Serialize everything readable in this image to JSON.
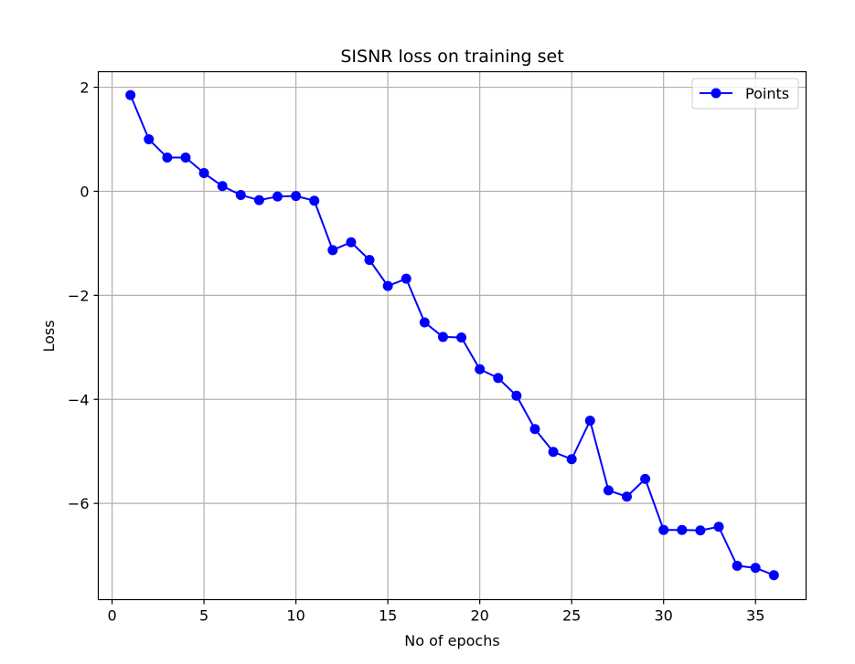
{
  "chart_data": {
    "type": "line",
    "title": "SISNR loss on training set",
    "xlabel": "No of epochs",
    "ylabel": "Loss",
    "xlim": [
      -0.75,
      37.75
    ],
    "ylim": [
      -7.85,
      2.3
    ],
    "xticks": [
      0,
      5,
      10,
      15,
      20,
      25,
      30,
      35
    ],
    "xtick_labels": [
      "0",
      "5",
      "10",
      "15",
      "20",
      "25",
      "30",
      "35"
    ],
    "yticks": [
      2,
      0,
      -2,
      -4,
      -6
    ],
    "ytick_labels": [
      "2",
      "0",
      "−2",
      "−4",
      "−6"
    ],
    "grid": true,
    "legend_position": "top-right",
    "series": [
      {
        "name": "Points",
        "color": "#0000ff",
        "marker": "circle",
        "x": [
          1,
          2,
          3,
          4,
          5,
          6,
          7,
          8,
          9,
          10,
          11,
          12,
          13,
          14,
          15,
          16,
          17,
          18,
          19,
          20,
          21,
          22,
          23,
          24,
          25,
          26,
          27,
          28,
          29,
          30,
          31,
          32,
          33,
          34,
          35,
          36
        ],
        "y": [
          1.85,
          1.0,
          0.65,
          0.65,
          0.35,
          0.1,
          -0.07,
          -0.17,
          -0.1,
          -0.09,
          -0.18,
          -1.13,
          -0.98,
          -1.32,
          -1.82,
          -1.68,
          -2.52,
          -2.8,
          -2.81,
          -3.42,
          -3.59,
          -3.93,
          -4.57,
          -5.01,
          -5.15,
          -4.41,
          -5.75,
          -5.87,
          -5.53,
          -6.51,
          -6.51,
          -6.52,
          -6.45,
          -7.2,
          -7.24,
          -7.38
        ]
      }
    ]
  }
}
